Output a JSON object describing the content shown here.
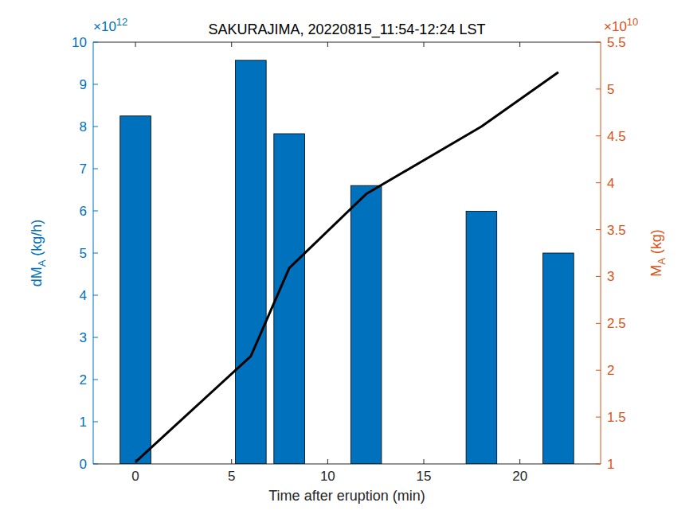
{
  "chart_data": {
    "type": "bar",
    "title": "SAKURAJIMA, 20220815_11:54-12:24 LST",
    "xlabel": "Time after eruption (min)",
    "ylabel": {
      "base": "dM",
      "sub": "A",
      "rest": " (kg/h)"
    },
    "y2label": {
      "base": "M",
      "sub": "A",
      "rest": " (kg)"
    },
    "annotations": [
      {
        "axis": "y",
        "text": "×10",
        "exponent": "12"
      },
      {
        "axis": "y2",
        "text": "×10",
        "exponent": "10"
      }
    ],
    "x": [
      0,
      6,
      8,
      12,
      18,
      22
    ],
    "xlim": [
      -2.2,
      24.2
    ],
    "xticks": [
      0,
      5,
      10,
      15,
      20
    ],
    "ylim": [
      0,
      10
    ],
    "yticks": [
      0,
      1,
      2,
      3,
      4,
      5,
      6,
      7,
      8,
      9,
      10
    ],
    "y2lim": [
      1,
      5.5
    ],
    "y2ticks": [
      1,
      1.5,
      2,
      2.5,
      3,
      3.5,
      4,
      4.5,
      5,
      5.5
    ],
    "series": [
      {
        "type": "bar",
        "color": "#0072bd",
        "values": [
          8.25,
          9.57,
          7.83,
          6.6,
          5.99,
          5.0
        ]
      },
      {
        "type": "line",
        "axis": "y2",
        "color": "#000000",
        "values": [
          1.02,
          2.15,
          3.09,
          3.88,
          4.6,
          5.18
        ]
      }
    ]
  }
}
